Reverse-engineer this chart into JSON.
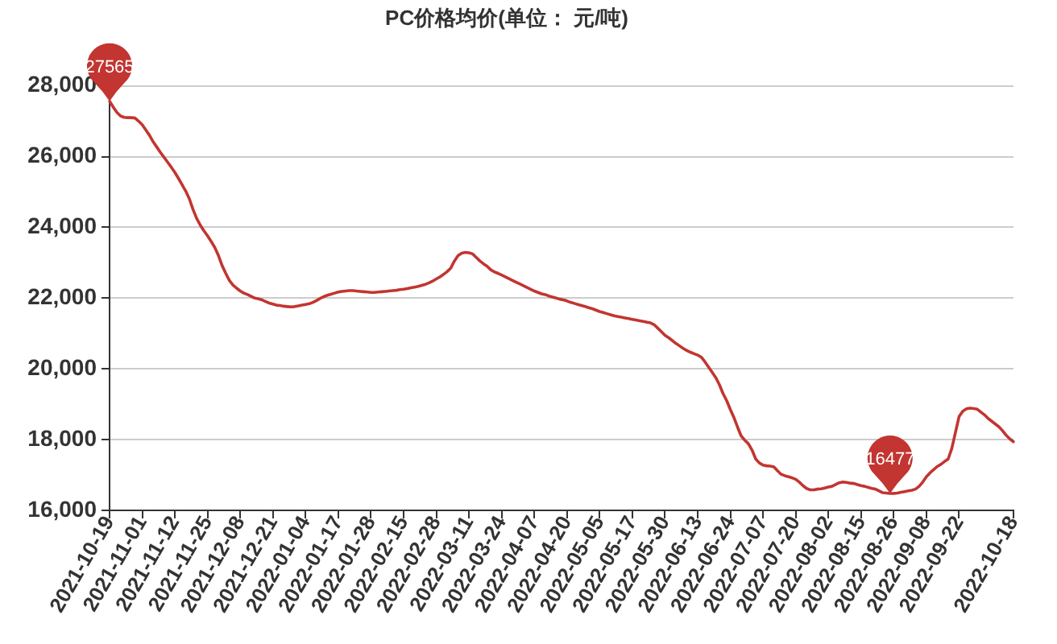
{
  "chart_data": {
    "type": "line",
    "title": "PC价格均价(单位： 元/吨)",
    "categories": [
      "2021-10-19",
      null,
      null,
      null,
      null,
      null,
      null,
      null,
      null,
      "2021-11-01",
      null,
      null,
      null,
      null,
      null,
      null,
      null,
      null,
      "2021-11-12",
      null,
      null,
      null,
      null,
      null,
      null,
      null,
      null,
      "2021-11-25",
      null,
      null,
      null,
      null,
      null,
      null,
      null,
      null,
      "2021-12-08",
      null,
      null,
      null,
      null,
      null,
      null,
      null,
      null,
      "2021-12-21",
      null,
      null,
      null,
      null,
      null,
      null,
      null,
      null,
      "2022-01-04",
      null,
      null,
      null,
      null,
      null,
      null,
      null,
      null,
      "2022-01-17",
      null,
      null,
      null,
      null,
      null,
      null,
      null,
      null,
      "2022-01-28",
      null,
      null,
      null,
      null,
      null,
      null,
      null,
      null,
      "2022-02-15",
      null,
      null,
      null,
      null,
      null,
      null,
      null,
      null,
      "2022-02-28",
      null,
      null,
      null,
      null,
      null,
      null,
      null,
      null,
      "2022-03-11",
      null,
      null,
      null,
      null,
      null,
      null,
      null,
      null,
      "2022-03-24",
      null,
      null,
      null,
      null,
      null,
      null,
      null,
      null,
      "2022-04-07",
      null,
      null,
      null,
      null,
      null,
      null,
      null,
      null,
      "2022-04-20",
      null,
      null,
      null,
      null,
      null,
      null,
      null,
      null,
      "2022-05-05",
      null,
      null,
      null,
      null,
      null,
      null,
      null,
      null,
      "2022-05-17",
      null,
      null,
      null,
      null,
      null,
      null,
      null,
      null,
      "2022-05-30",
      null,
      null,
      null,
      null,
      null,
      null,
      null,
      null,
      "2022-06-13",
      null,
      null,
      null,
      null,
      null,
      null,
      null,
      null,
      "2022-06-24",
      null,
      null,
      null,
      null,
      null,
      null,
      null,
      null,
      "2022-07-07",
      null,
      null,
      null,
      null,
      null,
      null,
      null,
      null,
      "2022-07-20",
      null,
      null,
      null,
      null,
      null,
      null,
      null,
      null,
      "2022-08-02",
      null,
      null,
      null,
      null,
      null,
      null,
      null,
      null,
      "2022-08-15",
      null,
      null,
      null,
      null,
      null,
      null,
      null,
      null,
      "2022-08-26",
      null,
      null,
      null,
      null,
      null,
      null,
      null,
      null,
      "2022-09-08",
      null,
      null,
      null,
      null,
      null,
      null,
      null,
      null,
      "2022-09-22",
      null,
      null,
      null,
      null,
      null,
      null,
      null,
      null,
      null,
      null,
      null,
      null,
      null,
      null,
      "2022-10-18"
    ],
    "values": [
      27565,
      27400,
      27250,
      27150,
      27110,
      27100,
      27100,
      27090,
      27000,
      26900,
      26750,
      26600,
      26420,
      26270,
      26120,
      25980,
      25840,
      25700,
      25550,
      25380,
      25200,
      25020,
      24800,
      24500,
      24250,
      24060,
      23900,
      23760,
      23600,
      23430,
      23200,
      22920,
      22700,
      22500,
      22370,
      22280,
      22200,
      22140,
      22100,
      22050,
      22000,
      21980,
      21950,
      21900,
      21860,
      21830,
      21800,
      21790,
      21770,
      21760,
      21750,
      21760,
      21780,
      21800,
      21820,
      21840,
      21880,
      21930,
      21990,
      22040,
      22080,
      22110,
      22140,
      22170,
      22190,
      22200,
      22210,
      22210,
      22200,
      22190,
      22180,
      22170,
      22160,
      22160,
      22170,
      22180,
      22190,
      22200,
      22210,
      22220,
      22240,
      22250,
      22270,
      22290,
      22310,
      22330,
      22360,
      22390,
      22430,
      22480,
      22540,
      22600,
      22670,
      22750,
      22850,
      23050,
      23200,
      23270,
      23290,
      23280,
      23250,
      23150,
      23050,
      22970,
      22900,
      22800,
      22740,
      22700,
      22650,
      22600,
      22550,
      22500,
      22450,
      22400,
      22350,
      22300,
      22250,
      22200,
      22160,
      22120,
      22100,
      22060,
      22030,
      22000,
      21970,
      21950,
      21920,
      21880,
      21850,
      21820,
      21790,
      21760,
      21730,
      21700,
      21660,
      21620,
      21590,
      21560,
      21530,
      21500,
      21480,
      21460,
      21440,
      21420,
      21400,
      21380,
      21360,
      21340,
      21320,
      21300,
      21250,
      21150,
      21050,
      20950,
      20880,
      20800,
      20720,
      20650,
      20580,
      20520,
      20470,
      20430,
      20390,
      20330,
      20200,
      20050,
      19900,
      19750,
      19550,
      19300,
      19100,
      18850,
      18620,
      18350,
      18100,
      17980,
      17880,
      17700,
      17450,
      17340,
      17280,
      17260,
      17250,
      17230,
      17120,
      17020,
      16980,
      16950,
      16920,
      16880,
      16800,
      16700,
      16620,
      16580,
      16580,
      16600,
      16610,
      16630,
      16660,
      16680,
      16730,
      16780,
      16800,
      16790,
      16770,
      16760,
      16730,
      16700,
      16680,
      16650,
      16620,
      16600,
      16550,
      16500,
      16490,
      16477,
      16480,
      16490,
      16510,
      16530,
      16550,
      16570,
      16600,
      16680,
      16800,
      16950,
      17060,
      17150,
      17240,
      17300,
      17380,
      17450,
      17750,
      18200,
      18650,
      18800,
      18870,
      18890,
      18880,
      18860,
      18780,
      18700,
      18600,
      18520,
      18440,
      18360,
      18250,
      18120,
      18020,
      17940
    ],
    "color": "#c23531",
    "ylim": [
      16000,
      28000
    ],
    "yticks": [
      {
        "value": 16000,
        "label": "16,000"
      },
      {
        "value": 18000,
        "label": "18,000"
      },
      {
        "value": 20000,
        "label": "20,000"
      },
      {
        "value": 22000,
        "label": "22,000"
      },
      {
        "value": 24000,
        "label": "24,000"
      },
      {
        "value": 26000,
        "label": "26,000"
      },
      {
        "value": 28000,
        "label": "28,000"
      }
    ],
    "grid": "y",
    "marker": "none",
    "line_style": "solid",
    "annotations": [
      {
        "text": "27565",
        "x": "2021-10-19",
        "y": 27565
      },
      {
        "text": "16477",
        "y": 16477
      }
    ]
  }
}
